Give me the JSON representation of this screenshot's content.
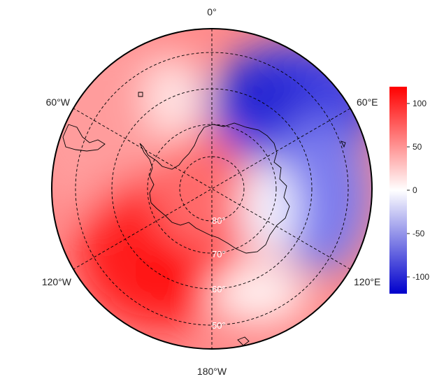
{
  "map": {
    "projection": "south polar stereographic",
    "lon_labels": [
      "0°",
      "60°E",
      "120°E",
      "180°W",
      "120°W",
      "60°W"
    ],
    "lat_labels": [
      "80°",
      "70°",
      "60°",
      "50°"
    ],
    "field_description": "diverging red-white-blue anomaly field",
    "colors": {
      "positive": "#ff0000",
      "zero": "#ffffff",
      "negative": "#0000cc"
    }
  },
  "colorbar": {
    "ticks": [
      "100",
      "50",
      "0",
      "-50",
      "-100"
    ],
    "range": [
      -120,
      120
    ]
  }
}
